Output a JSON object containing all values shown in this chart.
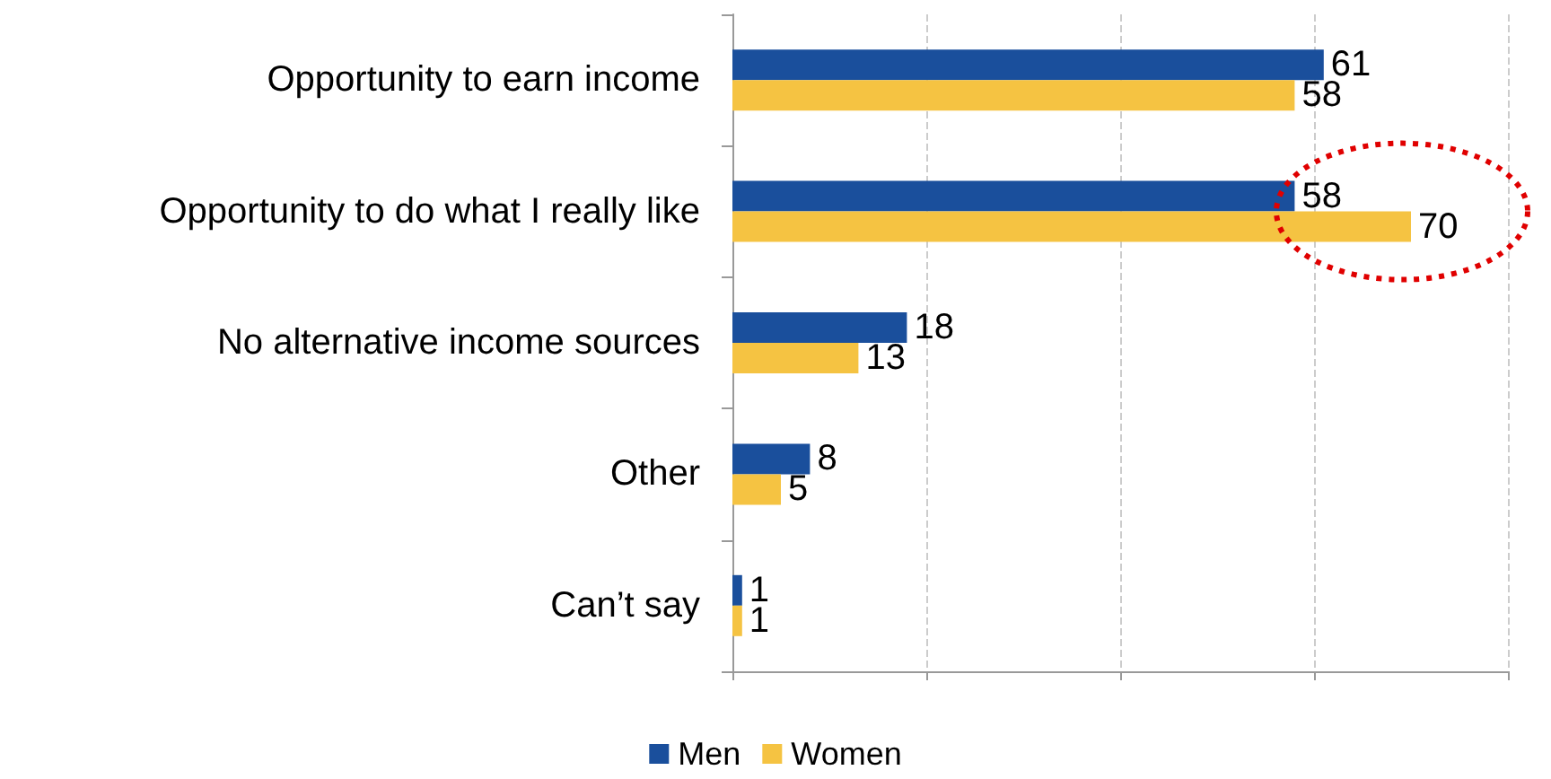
{
  "chart_data": {
    "type": "bar",
    "orientation": "horizontal",
    "categories": [
      "Opportunity to earn income",
      "Opportunity to do what I really like",
      "No alternative income sources",
      "Other",
      "Can’t say"
    ],
    "series": [
      {
        "name": "Men",
        "color": "#1a4f9c",
        "values": [
          61,
          58,
          18,
          8,
          1
        ]
      },
      {
        "name": "Women",
        "color": "#f5c342",
        "values": [
          58,
          70,
          13,
          5,
          1
        ]
      }
    ],
    "xlim": [
      0,
      80
    ],
    "xticks": [
      {
        "value": 0,
        "label": null
      },
      {
        "value": 20,
        "label": null
      },
      {
        "value": 40,
        "label": null
      },
      {
        "value": 60,
        "label": null
      },
      {
        "value": 80,
        "label": null
      }
    ],
    "tick_labels": "y",
    "grid": "x",
    "legend": "bottom",
    "data_labels": true
  }
}
